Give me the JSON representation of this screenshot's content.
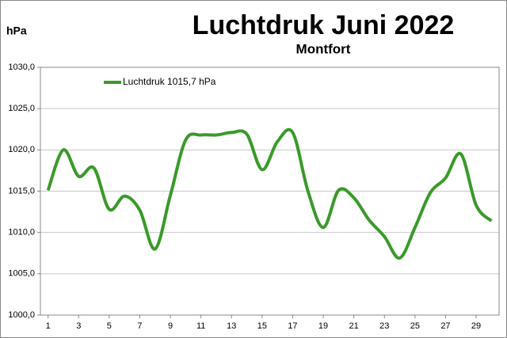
{
  "chart_data": {
    "type": "line",
    "title": "Luchtdruk Juni 2022",
    "subtitle": "Montfort",
    "y_label": "hPa",
    "x": [
      1,
      2,
      3,
      4,
      5,
      6,
      7,
      8,
      9,
      10,
      11,
      12,
      13,
      14,
      15,
      16,
      17,
      18,
      19,
      20,
      21,
      22,
      23,
      24,
      25,
      26,
      27,
      28,
      29,
      30
    ],
    "xlim": [
      0.5,
      30.5
    ],
    "xticks": [
      1,
      3,
      5,
      7,
      9,
      11,
      13,
      15,
      17,
      19,
      21,
      23,
      25,
      27,
      29
    ],
    "ylim": [
      1000,
      1030
    ],
    "yticks": [
      {
        "value": 1000,
        "label": "1000,0"
      },
      {
        "value": 1005,
        "label": "1005,0"
      },
      {
        "value": 1010,
        "label": "1010,0"
      },
      {
        "value": 1015,
        "label": "1015,0"
      },
      {
        "value": 1020,
        "label": "1020,0"
      },
      {
        "value": 1025,
        "label": "1025,0"
      },
      {
        "value": 1030,
        "label": "1030,0"
      }
    ],
    "grid": true,
    "legend": "top-left",
    "smooth": true,
    "series": [
      {
        "name": "Luchtdruk 1015,7 hPa",
        "color": "#3a9a2a",
        "values": [
          1015.1,
          1020.0,
          1016.8,
          1017.8,
          1012.8,
          1014.4,
          1012.7,
          1008.0,
          1014.5,
          1021.2,
          1021.8,
          1021.8,
          1022.1,
          1021.9,
          1017.6,
          1021.0,
          1022.1,
          1015.0,
          1010.6,
          1015.1,
          1014.2,
          1011.5,
          1009.5,
          1006.9,
          1010.6,
          1014.8,
          1016.6,
          1019.5,
          1013.3,
          1011.4
        ]
      }
    ]
  }
}
